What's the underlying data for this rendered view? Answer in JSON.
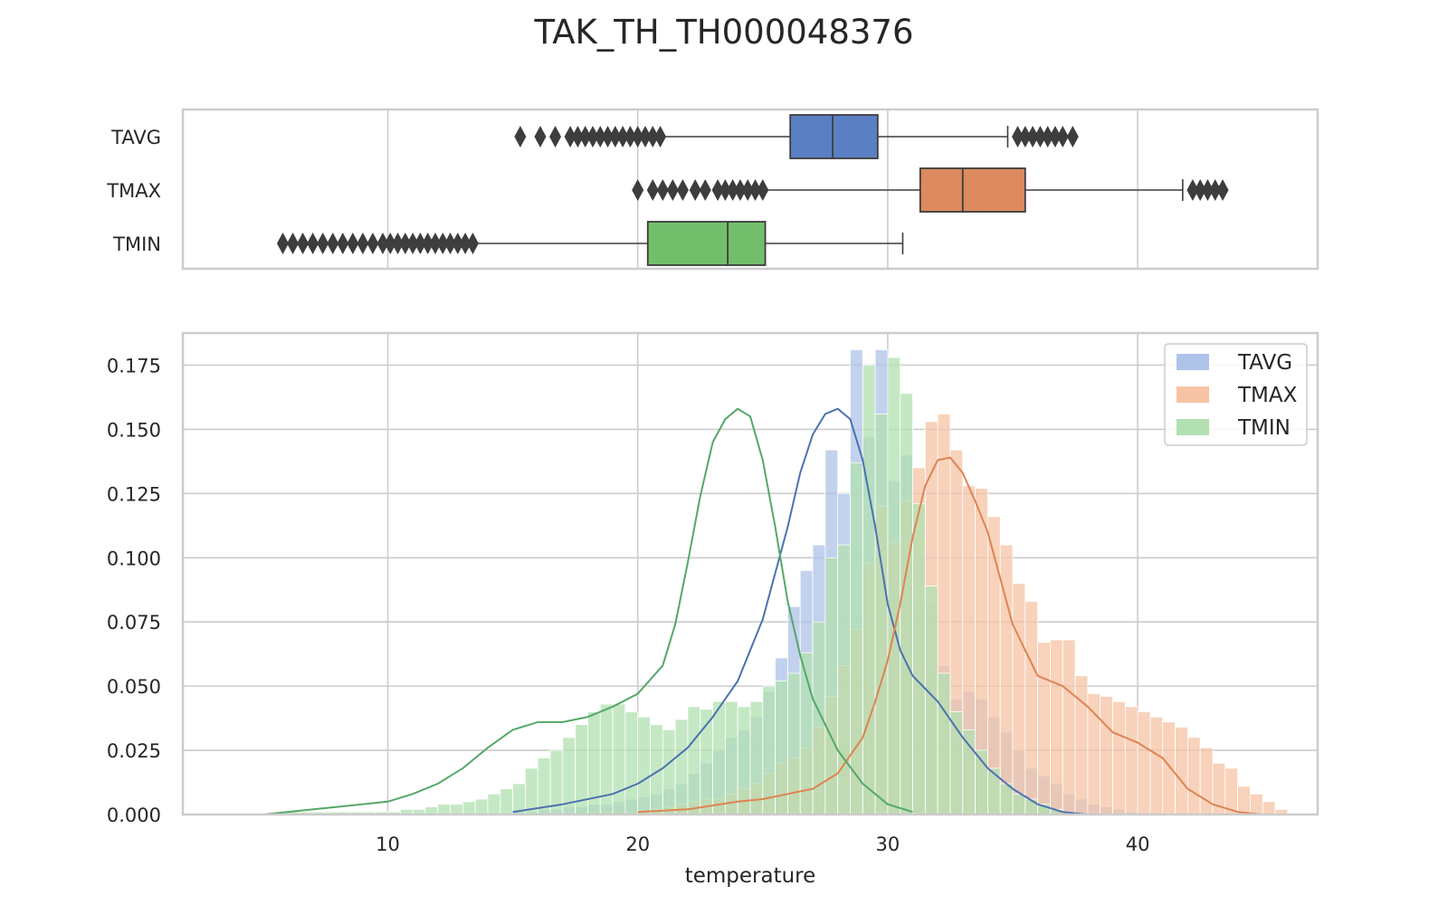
{
  "figure": {
    "title": "TAK_TH_TH000048376",
    "xlabel": "temperature"
  },
  "chart_data": [
    {
      "type": "boxplot",
      "orient": "horizontal",
      "xlim": [
        1.8,
        47.2
      ],
      "xticks": [
        10,
        20,
        30,
        40
      ],
      "grid": true,
      "categories": [
        "TAVG",
        "TMAX",
        "TMIN"
      ],
      "boxes": [
        {
          "name": "TAVG",
          "color": "#5b7fc3",
          "whisker_low": 21.0,
          "q1": 26.1,
          "median": 27.8,
          "q3": 29.6,
          "whisker_high": 34.8,
          "outliers": [
            15.3,
            16.1,
            16.7,
            17.3,
            17.6,
            17.9,
            18.2,
            18.5,
            18.8,
            19.1,
            19.4,
            19.7,
            20.0,
            20.3,
            20.6,
            20.9,
            35.2,
            35.5,
            35.8,
            36.1,
            36.4,
            36.7,
            37.0,
            37.4
          ]
        },
        {
          "name": "TMAX",
          "color": "#dd8a5f",
          "whisker_low": 25.0,
          "q1": 31.3,
          "median": 33.0,
          "q3": 35.5,
          "whisker_high": 41.8,
          "outliers": [
            20.0,
            20.6,
            21.0,
            21.4,
            21.8,
            22.3,
            22.7,
            23.2,
            23.5,
            23.8,
            24.1,
            24.4,
            24.7,
            25.0,
            42.2,
            42.5,
            42.8,
            43.1,
            43.4
          ]
        },
        {
          "name": "TMIN",
          "color": "#72bf6b",
          "whisker_low": 13.5,
          "q1": 20.4,
          "median": 23.6,
          "q3": 25.1,
          "whisker_high": 30.6,
          "outliers": [
            5.8,
            6.2,
            6.6,
            7.0,
            7.4,
            7.8,
            8.2,
            8.6,
            9.0,
            9.4,
            9.8,
            10.1,
            10.4,
            10.7,
            11.0,
            11.3,
            11.6,
            11.9,
            12.2,
            12.5,
            12.8,
            13.1,
            13.4
          ]
        }
      ]
    },
    {
      "type": "histogram",
      "xlim": [
        1.8,
        47.2
      ],
      "ylim": [
        0,
        0.1875
      ],
      "xticks": [
        10,
        20,
        30,
        40
      ],
      "yticks": [
        "0.000",
        "0.025",
        "0.050",
        "0.075",
        "0.100",
        "0.125",
        "0.150",
        "0.175"
      ],
      "grid": true,
      "legend_placement": "upper-right",
      "series": [
        {
          "name": "TAVG",
          "color": "#4c72b0",
          "bar_color": "#aec3e8",
          "bins_start": 15.0,
          "bin_width": 0.5,
          "density": [
            0.001,
            0.001,
            0.002,
            0.002,
            0.003,
            0.003,
            0.004,
            0.004,
            0.005,
            0.006,
            0.007,
            0.008,
            0.01,
            0.012,
            0.016,
            0.02,
            0.025,
            0.03,
            0.033,
            0.038,
            0.048,
            0.061,
            0.081,
            0.095,
            0.105,
            0.142,
            0.125,
            0.181,
            0.147,
            0.181,
            0.13,
            0.14,
            0.1,
            0.082,
            0.058,
            0.045,
            0.048,
            0.045,
            0.038,
            0.032,
            0.025,
            0.018,
            0.015,
            0.012,
            0.008,
            0.006,
            0.004,
            0.003,
            0.002,
            0.001
          ],
          "kde_x": [
            15,
            17,
            19,
            20,
            21,
            22,
            23,
            24,
            25,
            26,
            26.5,
            27,
            27.5,
            28,
            28.5,
            29,
            29.5,
            30,
            30.5,
            31,
            32,
            33,
            34,
            35,
            36,
            37,
            38
          ],
          "kde_y": [
            0.001,
            0.004,
            0.008,
            0.012,
            0.018,
            0.026,
            0.038,
            0.052,
            0.076,
            0.112,
            0.133,
            0.148,
            0.156,
            0.158,
            0.154,
            0.138,
            0.112,
            0.082,
            0.064,
            0.054,
            0.044,
            0.03,
            0.018,
            0.01,
            0.004,
            0.001,
            0.0
          ]
        },
        {
          "name": "TMAX",
          "color": "#dd8452",
          "bar_color": "#f6c3a4",
          "bins_start": 20.0,
          "bin_width": 0.5,
          "density": [
            0.001,
            0.002,
            0.003,
            0.004,
            0.005,
            0.006,
            0.006,
            0.008,
            0.01,
            0.012,
            0.016,
            0.02,
            0.022,
            0.026,
            0.034,
            0.046,
            0.058,
            0.072,
            0.098,
            0.12,
            0.106,
            0.122,
            0.135,
            0.153,
            0.156,
            0.142,
            0.128,
            0.127,
            0.116,
            0.105,
            0.09,
            0.083,
            0.067,
            0.068,
            0.068,
            0.054,
            0.047,
            0.046,
            0.044,
            0.042,
            0.04,
            0.038,
            0.036,
            0.034,
            0.03,
            0.026,
            0.02,
            0.018,
            0.011,
            0.008,
            0.005,
            0.002
          ],
          "kde_x": [
            20,
            22,
            24,
            25,
            26,
            27,
            28,
            29,
            29.5,
            30,
            30.5,
            31,
            31.5,
            32,
            32.5,
            33,
            33.5,
            34,
            35,
            36,
            37,
            38,
            39,
            40,
            41,
            42,
            43,
            44,
            45
          ],
          "kde_y": [
            0.001,
            0.002,
            0.005,
            0.006,
            0.008,
            0.01,
            0.016,
            0.03,
            0.044,
            0.06,
            0.082,
            0.108,
            0.128,
            0.138,
            0.139,
            0.133,
            0.122,
            0.11,
            0.074,
            0.054,
            0.05,
            0.042,
            0.032,
            0.028,
            0.022,
            0.01,
            0.004,
            0.001,
            0.0
          ]
        },
        {
          "name": "TMIN",
          "color": "#55a868",
          "bar_color": "#b2e0b0",
          "bins_start": 5.5,
          "bin_width": 0.5,
          "density": [
            0.001,
            0.001,
            0.001,
            0.001,
            0.001,
            0.001,
            0.001,
            0.001,
            0.001,
            0.001,
            0.002,
            0.002,
            0.003,
            0.004,
            0.004,
            0.005,
            0.006,
            0.008,
            0.01,
            0.012,
            0.018,
            0.022,
            0.025,
            0.03,
            0.035,
            0.04,
            0.043,
            0.043,
            0.04,
            0.038,
            0.035,
            0.033,
            0.037,
            0.042,
            0.041,
            0.044,
            0.044,
            0.042,
            0.044,
            0.05,
            0.052,
            0.055,
            0.063,
            0.075,
            0.1,
            0.105,
            0.137,
            0.175,
            0.156,
            0.178,
            0.164,
            0.121,
            0.089,
            0.055,
            0.04,
            0.033,
            0.025,
            0.018,
            0.012,
            0.008,
            0.006,
            0.004,
            0.002
          ],
          "kde_x": [
            5,
            8,
            10,
            11,
            12,
            13,
            14,
            15,
            16,
            17,
            18,
            19,
            20,
            21,
            21.5,
            22,
            22.5,
            23,
            23.5,
            24,
            24.5,
            25,
            25.5,
            26,
            26.5,
            27,
            28,
            29,
            30,
            31
          ],
          "kde_y": [
            0.0,
            0.003,
            0.005,
            0.008,
            0.012,
            0.018,
            0.026,
            0.033,
            0.036,
            0.036,
            0.038,
            0.042,
            0.047,
            0.058,
            0.074,
            0.098,
            0.124,
            0.145,
            0.154,
            0.158,
            0.155,
            0.138,
            0.112,
            0.083,
            0.062,
            0.045,
            0.025,
            0.012,
            0.004,
            0.001
          ]
        }
      ]
    }
  ]
}
